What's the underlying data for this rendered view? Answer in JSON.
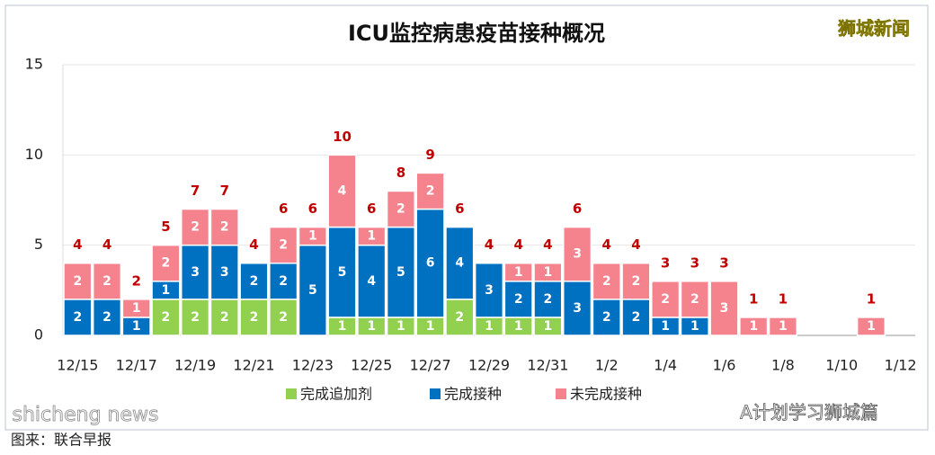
{
  "chart_data": {
    "type": "stacked_bar",
    "title": "ICU监控病患疫苗接种概况",
    "watermark": "狮城新闻",
    "footer_account": "A计划学习狮城篇",
    "footer_site": "shicheng news",
    "source": "图来：联合早报",
    "categories": [
      "12/15",
      null,
      "12/17",
      null,
      "12/19",
      null,
      "12/21",
      null,
      "12/23",
      null,
      "12/25",
      null,
      "12/27",
      null,
      "12/29",
      null,
      "12/31",
      null,
      "1/2",
      null,
      "1/4",
      null,
      "1/6",
      null,
      "1/8",
      null,
      "1/10",
      null,
      "1/12"
    ],
    "series": [
      {
        "name": "完成追加剂",
        "color": "#92d050",
        "values": [
          null,
          null,
          null,
          2,
          2,
          2,
          2,
          2,
          null,
          1,
          1,
          1,
          1,
          2,
          1,
          1,
          1,
          null,
          null,
          null,
          null,
          null,
          null,
          null,
          null,
          null,
          null,
          null,
          null
        ]
      },
      {
        "name": "完成接种",
        "color": "#0070c0",
        "values": [
          2,
          2,
          1,
          1,
          3,
          3,
          2,
          2,
          5,
          5,
          4,
          5,
          6,
          4,
          3,
          2,
          2,
          3,
          2,
          2,
          1,
          1,
          null,
          null,
          null,
          null,
          null,
          null,
          null
        ]
      },
      {
        "name": "未完成接种",
        "color": "#f4838d",
        "values": [
          2,
          2,
          1,
          2,
          2,
          2,
          null,
          2,
          1,
          4,
          1,
          2,
          2,
          null,
          null,
          1,
          1,
          3,
          2,
          2,
          2,
          2,
          3,
          1,
          1,
          null,
          null,
          1,
          null
        ]
      }
    ],
    "totals": [
      4,
      4,
      2,
      5,
      7,
      7,
      4,
      6,
      6,
      10,
      6,
      8,
      9,
      6,
      4,
      4,
      4,
      6,
      4,
      4,
      3,
      3,
      3,
      1,
      1,
      null,
      null,
      1,
      null
    ],
    "ylim": [
      0,
      15
    ],
    "yticks": [
      0,
      5,
      10,
      15
    ],
    "grid": true,
    "legend": "bottom"
  }
}
